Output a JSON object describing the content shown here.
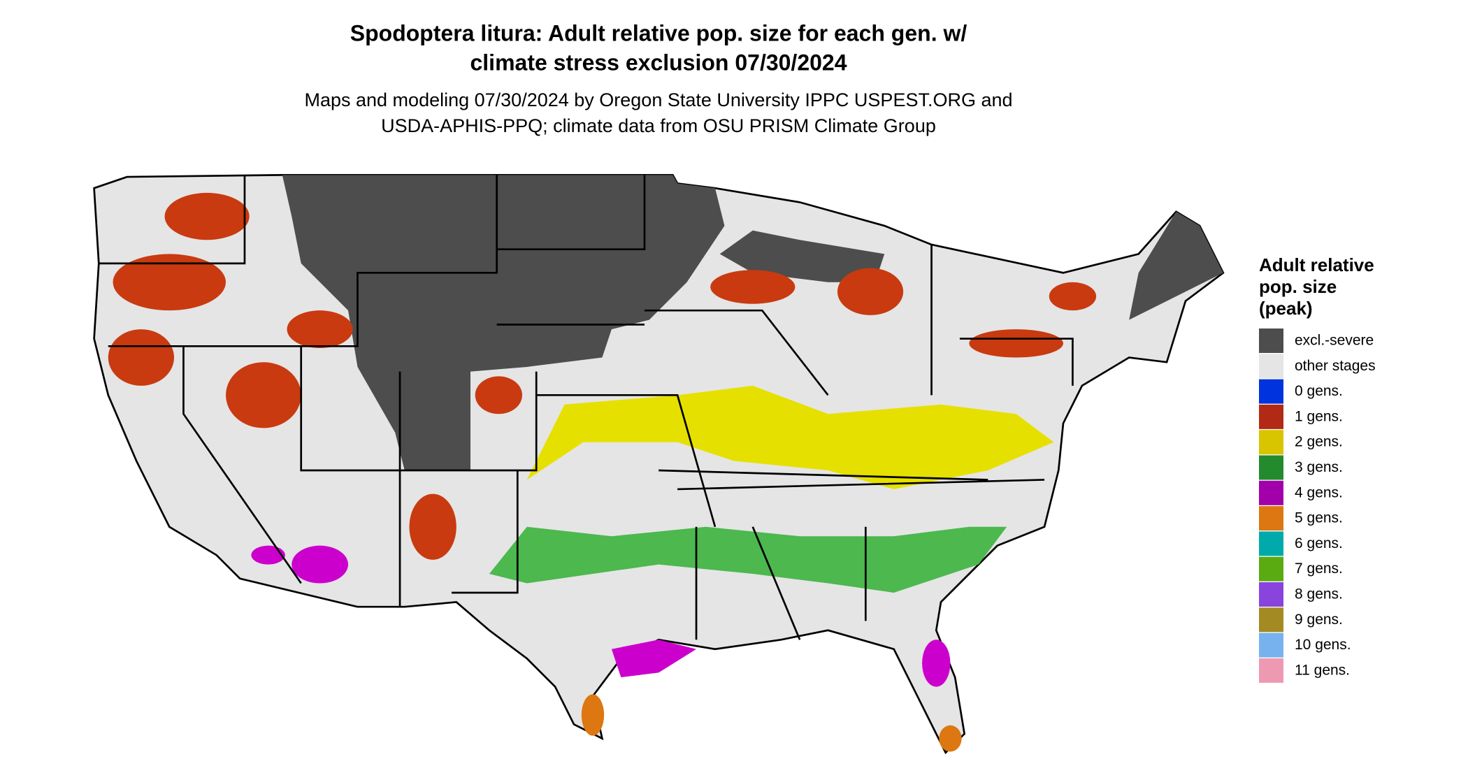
{
  "header": {
    "title": [
      "Spodoptera litura: Adult relative pop. size for each gen. w/",
      "climate stress exclusion 07/30/2024"
    ],
    "subtitle": [
      "Maps and modeling 07/30/2024 by Oregon State University IPPC USPEST.ORG and",
      "USDA-APHIS-PPQ; climate data from OSU PRISM Climate Group"
    ]
  },
  "legend": {
    "title": [
      "Adult relative",
      "pop. size",
      "(peak)"
    ],
    "items": [
      {
        "label": "excl.-severe",
        "color": "#4d4d4d"
      },
      {
        "label": "other stages",
        "color": "#e5e5e5"
      },
      {
        "label": "0 gens.",
        "color": "#0033dd"
      },
      {
        "label": "1 gens.",
        "color": "#b22a14"
      },
      {
        "label": "2 gens.",
        "color": "#d9c400"
      },
      {
        "label": "3 gens.",
        "color": "#238b2e"
      },
      {
        "label": "4 gens.",
        "color": "#a200aa"
      },
      {
        "label": "5 gens.",
        "color": "#dd7711"
      },
      {
        "label": "6 gens.",
        "color": "#00aaaa"
      },
      {
        "label": "7 gens.",
        "color": "#5aaa11"
      },
      {
        "label": "8 gens.",
        "color": "#8844dd"
      },
      {
        "label": "9 gens.",
        "color": "#a48a22"
      },
      {
        "label": "10 gens.",
        "color": "#77b2ee"
      },
      {
        "label": "11 gens.",
        "color": "#ee99b2"
      }
    ]
  }
}
